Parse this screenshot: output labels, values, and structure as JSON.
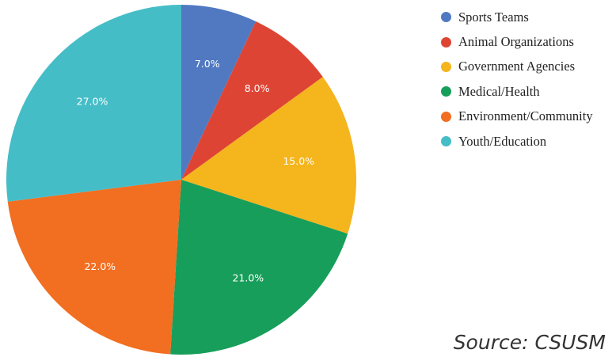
{
  "chart_data": {
    "type": "pie",
    "title": "",
    "start_angle_deg": 0,
    "direction": "clockwise",
    "legend_position": "right",
    "slices": [
      {
        "label": "Sports Teams",
        "value": 7.0,
        "display": "7.0%",
        "color": "#5079C2"
      },
      {
        "label": "Animal Organizations",
        "value": 8.0,
        "display": "8.0%",
        "color": "#DE4434"
      },
      {
        "label": "Government Agencies",
        "value": 15.0,
        "display": "15.0%",
        "color": "#F4B51D"
      },
      {
        "label": "Medical/Health",
        "value": 21.0,
        "display": "21.0%",
        "color": "#179E5A"
      },
      {
        "label": "Environment/Community",
        "value": 22.0,
        "display": "22.0%",
        "color": "#F26E20"
      },
      {
        "label": "Youth/Education",
        "value": 27.0,
        "display": "27.0%",
        "color": "#45BDC7"
      }
    ]
  },
  "source": {
    "text": "Source: CSUSM"
  }
}
